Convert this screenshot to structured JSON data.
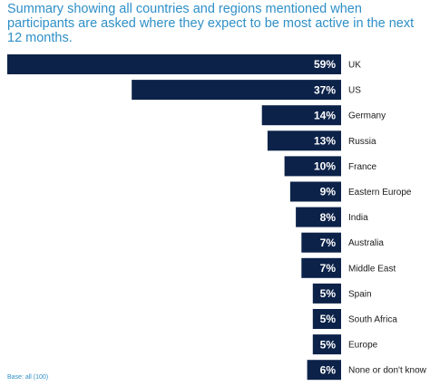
{
  "title": "Summary showing all countries and regions mentioned when participants are asked where they expect to be most active in the next 12 months.",
  "base_note": "Base: all (100)",
  "colors": {
    "bar": "#0c2249",
    "title": "#2e8fc7",
    "value_text": "#ffffff",
    "label_text": "#1a1a1a"
  },
  "chart_data": {
    "type": "bar",
    "orientation": "horizontal",
    "categories": [
      "UK",
      "US",
      "Germany",
      "Russia",
      "France",
      "Eastern Europe",
      "India",
      "Australia",
      "Middle East",
      "Spain",
      "South Africa",
      "Europe",
      "None or don't know"
    ],
    "values": [
      59,
      37,
      14,
      13,
      10,
      9,
      8,
      7,
      7,
      5,
      5,
      5,
      6
    ],
    "value_labels": [
      "59%",
      "37%",
      "14%",
      "13%",
      "10%",
      "9%",
      "8%",
      "7%",
      "7%",
      "5%",
      "5%",
      "5%",
      "6%"
    ],
    "title": "Summary showing all countries and regions mentioned when participants are asked where they expect to be most active in the next 12 months.",
    "xlim": [
      0,
      59
    ],
    "grid": false,
    "legend": "none",
    "bars_grow_from": "right",
    "category_labels_position": "right"
  }
}
